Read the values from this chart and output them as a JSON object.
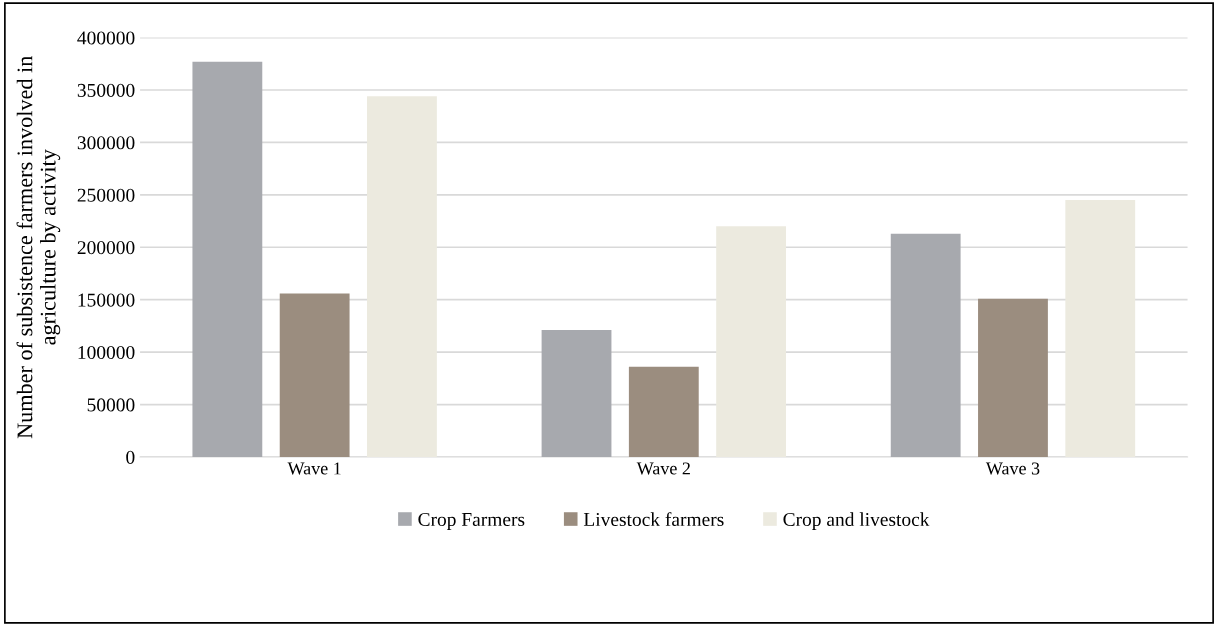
{
  "chart_data": {
    "type": "bar",
    "ylabel": "Number of subsistence farmers involved in\nagriculture by activity",
    "categories": [
      "Wave 1",
      "Wave 2",
      "Wave 3"
    ],
    "series": [
      {
        "name": "Crop Farmers",
        "color": "#a7a9ae",
        "values": [
          377000,
          121000,
          213000
        ]
      },
      {
        "name": "Livestock farmers",
        "color": "#9b8d7f",
        "values": [
          156000,
          86000,
          151000
        ]
      },
      {
        "name": "Crop and livestock",
        "color": "#eceadf",
        "values": [
          344000,
          220000,
          245000
        ]
      }
    ],
    "ylim": [
      0,
      400000
    ],
    "yticks": [
      0,
      50000,
      100000,
      150000,
      200000,
      250000,
      300000,
      350000,
      400000
    ],
    "grid": "y",
    "legend": "bottom"
  }
}
